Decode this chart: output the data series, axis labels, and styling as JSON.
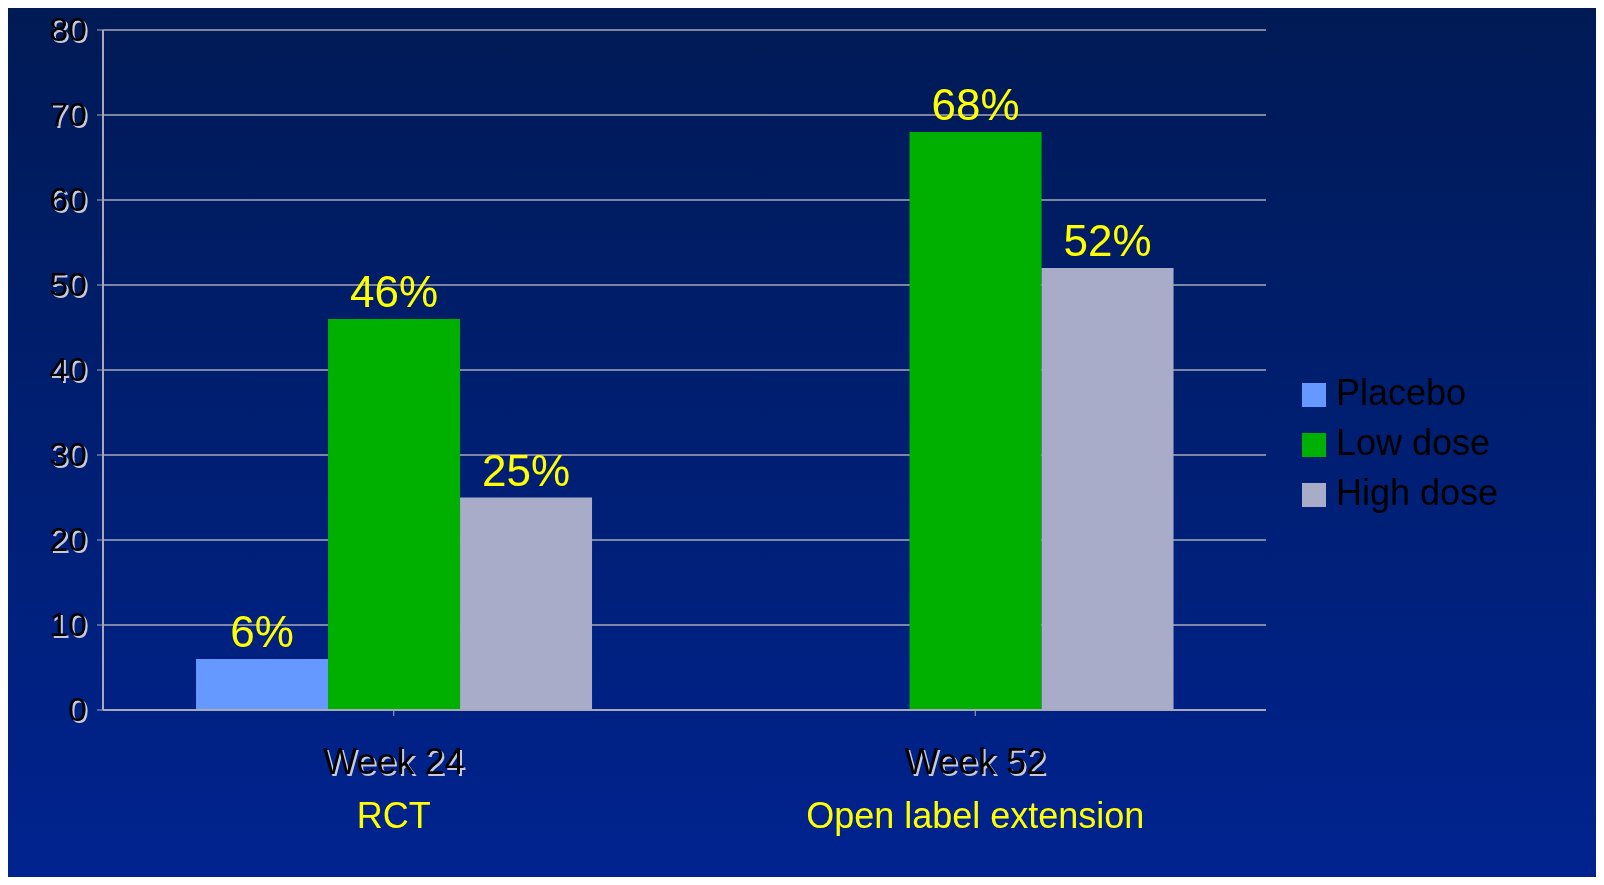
{
  "chart_data": {
    "type": "bar",
    "categories": [
      "Week 24",
      "Week 52"
    ],
    "series": [
      {
        "name": "Placebo",
        "color": "#6699ff",
        "values": [
          6,
          null
        ],
        "value_labels": [
          "6%",
          null
        ]
      },
      {
        "name": "Low dose",
        "color": "#00b000",
        "values": [
          46,
          68
        ],
        "value_labels": [
          "46%",
          "68%"
        ]
      },
      {
        "name": "High dose",
        "color": "#a9acc9",
        "values": [
          25,
          52
        ],
        "value_labels": [
          "25%",
          "52%"
        ]
      }
    ],
    "annotations": [
      "RCT",
      "Open label extension"
    ],
    "ylim": [
      0,
      80
    ],
    "yticks": [
      0,
      10,
      20,
      30,
      40,
      50,
      60,
      70,
      80
    ],
    "grid": "y",
    "legend": "right"
  }
}
